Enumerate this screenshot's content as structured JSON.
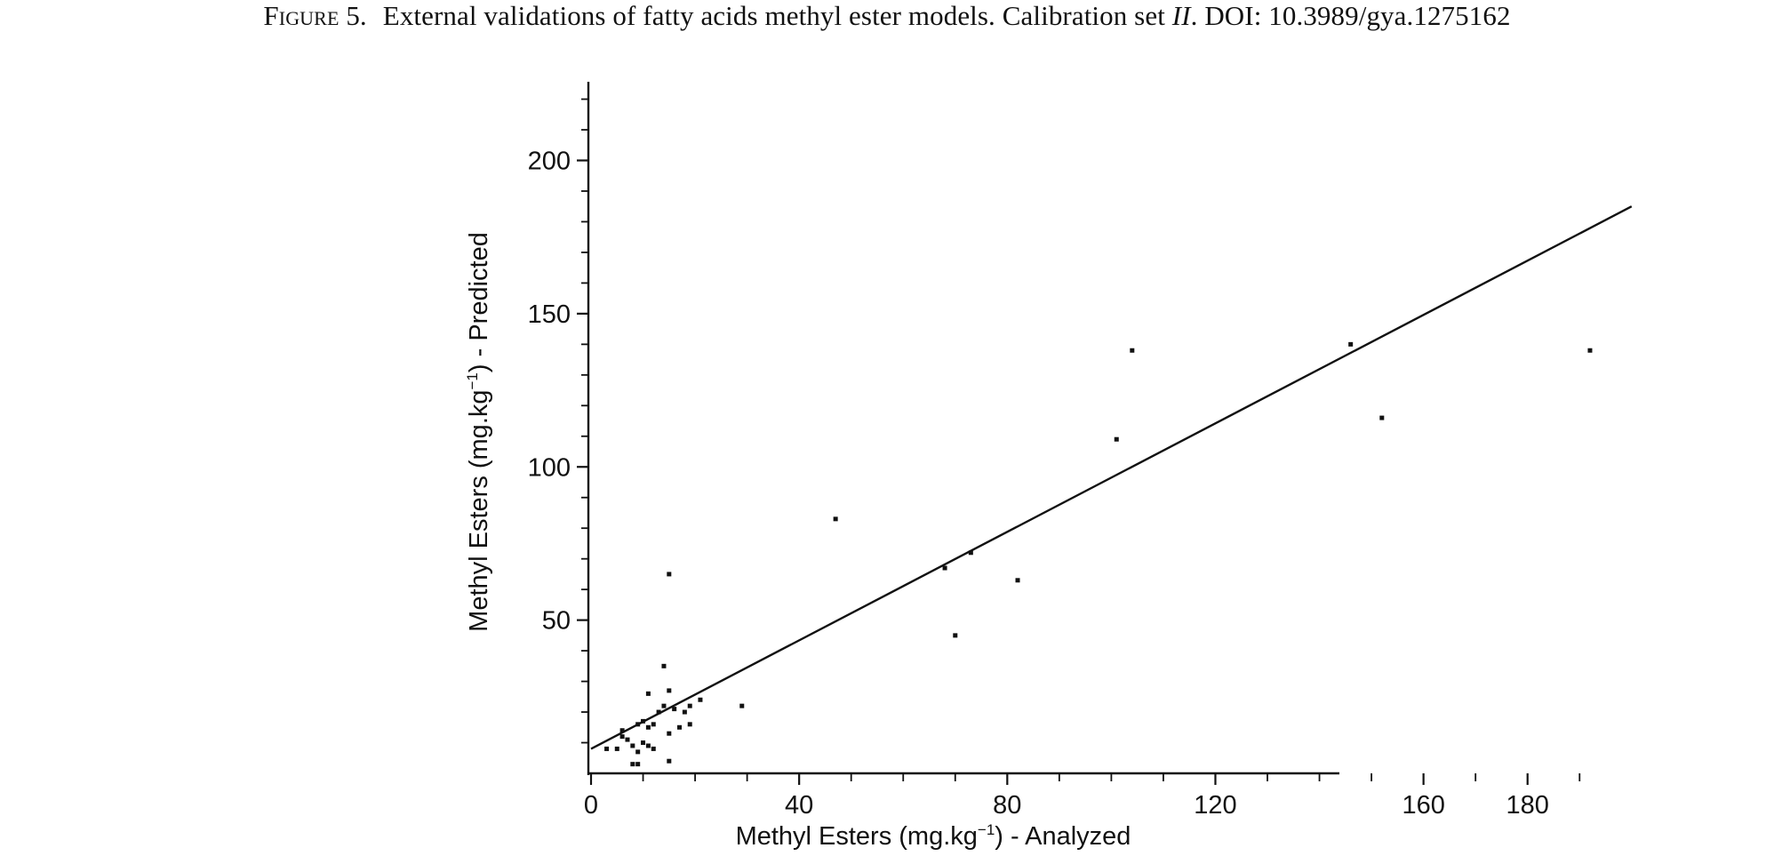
{
  "caption": {
    "label": "Figure 5.",
    "text_before": "External validations of fatty acids methyl ester models. Calibration set ",
    "set_id": "II",
    "text_after": ". DOI: 10.3989/gya.1275162"
  },
  "chart_data": {
    "type": "scatter",
    "title": "",
    "xlabel": {
      "prefix": "Methyl Esters (mg.kg",
      "superscript": "−1",
      "suffix": ") - Analyzed"
    },
    "ylabel": {
      "prefix": "Methyl Esters (mg.kg",
      "superscript": "−1",
      "suffix": ") - Predicted"
    },
    "xlim": [
      0,
      200
    ],
    "ylim": [
      0,
      225
    ],
    "x_ticks": [
      0,
      40,
      80,
      120,
      160,
      180
    ],
    "x_minor_ticks": [
      0,
      10,
      20,
      30,
      40,
      50,
      60,
      70,
      80,
      90,
      100,
      110,
      120,
      130,
      140,
      150,
      160,
      170,
      180,
      190
    ],
    "y_ticks": [
      50,
      100,
      150,
      200
    ],
    "y_minor_ticks": [
      10,
      20,
      30,
      40,
      50,
      60,
      70,
      80,
      90,
      100,
      110,
      120,
      130,
      140,
      150,
      160,
      170,
      180,
      190,
      200,
      210,
      220
    ],
    "grid": false,
    "legend": "none",
    "color": "#111111",
    "points": [
      {
        "x": 3,
        "y": 8
      },
      {
        "x": 5,
        "y": 8
      },
      {
        "x": 6,
        "y": 12
      },
      {
        "x": 6,
        "y": 14
      },
      {
        "x": 7,
        "y": 11
      },
      {
        "x": 8,
        "y": 9
      },
      {
        "x": 8,
        "y": 3
      },
      {
        "x": 9,
        "y": 16
      },
      {
        "x": 9,
        "y": 7
      },
      {
        "x": 9,
        "y": 3
      },
      {
        "x": 10,
        "y": 10
      },
      {
        "x": 10,
        "y": 17
      },
      {
        "x": 11,
        "y": 9
      },
      {
        "x": 11,
        "y": 15
      },
      {
        "x": 11,
        "y": 26
      },
      {
        "x": 12,
        "y": 16
      },
      {
        "x": 12,
        "y": 8
      },
      {
        "x": 13,
        "y": 20
      },
      {
        "x": 14,
        "y": 22
      },
      {
        "x": 14,
        "y": 35
      },
      {
        "x": 15,
        "y": 27
      },
      {
        "x": 15,
        "y": 65
      },
      {
        "x": 15,
        "y": 13
      },
      {
        "x": 15,
        "y": 4
      },
      {
        "x": 16,
        "y": 21
      },
      {
        "x": 17,
        "y": 15
      },
      {
        "x": 18,
        "y": 20
      },
      {
        "x": 19,
        "y": 16
      },
      {
        "x": 19,
        "y": 22
      },
      {
        "x": 21,
        "y": 24
      },
      {
        "x": 29,
        "y": 22
      },
      {
        "x": 47,
        "y": 83
      },
      {
        "x": 68,
        "y": 67
      },
      {
        "x": 70,
        "y": 45
      },
      {
        "x": 73,
        "y": 72
      },
      {
        "x": 82,
        "y": 63
      },
      {
        "x": 101,
        "y": 109
      },
      {
        "x": 104,
        "y": 138
      },
      {
        "x": 146,
        "y": 140
      },
      {
        "x": 152,
        "y": 116
      },
      {
        "x": 192,
        "y": 138
      }
    ],
    "fit_line": {
      "x": [
        0,
        200
      ],
      "y": [
        8,
        185
      ]
    }
  }
}
